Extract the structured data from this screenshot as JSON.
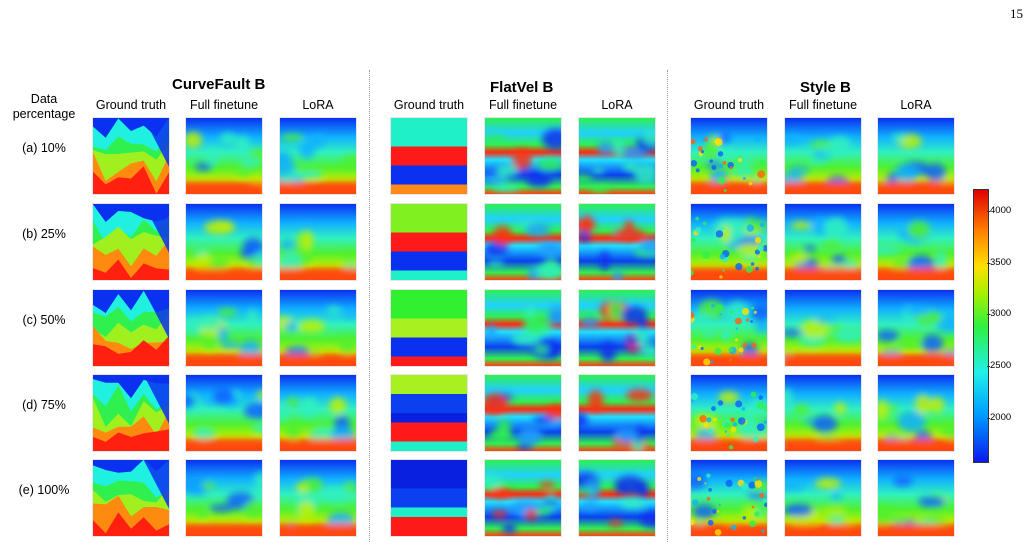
{
  "page_number": "15",
  "left_header": {
    "line1": "Data",
    "line2": "percentage"
  },
  "row_labels": [
    "(a) 10%",
    "(b) 25%",
    "(c) 50%",
    "(d) 75%",
    "(e) 100%"
  ],
  "groups": [
    {
      "title": "CurveFault B",
      "columns": [
        "Ground truth",
        "Full finetune",
        "LoRA"
      ]
    },
    {
      "title": "FlatVel B",
      "columns": [
        "Ground truth",
        "Full finetune",
        "LoRA"
      ]
    },
    {
      "title": "Style B",
      "columns": [
        "Ground truth",
        "Full finetune",
        "LoRA"
      ]
    }
  ],
  "colorbar": {
    "ticks": [
      "4000",
      "3500",
      "3000",
      "2500",
      "2000"
    ],
    "colormap": [
      "#0a1af0",
      "#00a0ff",
      "#20f0e8",
      "#30f040",
      "#a8f000",
      "#ffe000",
      "#ff8000",
      "#e00000"
    ]
  },
  "flatvel_ground_truth_layers": [
    [
      "#20f0c8",
      "#20f0c8",
      "#20f0c8",
      "#ff1a1a",
      "#ff1a1a",
      "#0a30f0",
      "#0a30f0",
      "#ff8a1a"
    ],
    [
      "#80f020",
      "#80f020",
      "#80f020",
      "#ff1a1a",
      "#ff1a1a",
      "#0a30f0",
      "#0a30f0",
      "#20f0c8"
    ],
    [
      "#30f030",
      "#30f030",
      "#30f030",
      "#a8f020",
      "#a8f020",
      "#0a30f0",
      "#0a30f0",
      "#ff1a1a"
    ],
    [
      "#a8f020",
      "#a8f020",
      "#0a40f0",
      "#0a40f0",
      "#0a20e0",
      "#ff1a1a",
      "#ff1a1a",
      "#20f0c8"
    ],
    [
      "#0a20e0",
      "#0a20e0",
      "#0a20e0",
      "#0a40f0",
      "#0a40f0",
      "#20f0c8",
      "#ff1a1a",
      "#ff1a1a"
    ]
  ]
}
